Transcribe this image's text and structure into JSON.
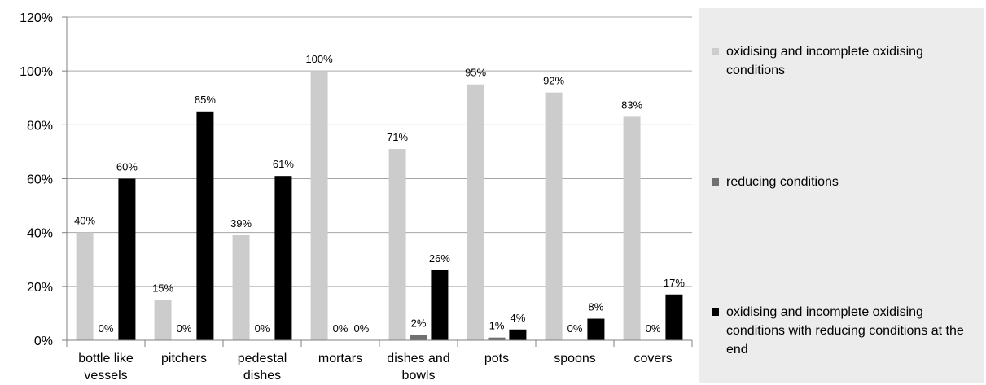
{
  "chart_data": {
    "type": "bar",
    "categories": [
      [
        "bottle like",
        "vessels"
      ],
      [
        "pitchers"
      ],
      [
        "pedestal",
        "dishes"
      ],
      [
        "mortars"
      ],
      [
        "dishes and",
        "bowls"
      ],
      [
        "pots"
      ],
      [
        "spoons"
      ],
      [
        "covers"
      ]
    ],
    "series": [
      {
        "name": "oxidising and incomplete oxidising conditions",
        "color": "#cccccc",
        "values": [
          40,
          15,
          39,
          100,
          71,
          95,
          92,
          83
        ]
      },
      {
        "name": "reducing conditions",
        "color": "#707070",
        "values": [
          0,
          0,
          0,
          0,
          2,
          1,
          0,
          0
        ]
      },
      {
        "name": "oxidising and incomplete oxidising conditions with reducing conditions at the end",
        "color": "#000000",
        "values": [
          60,
          85,
          61,
          0,
          26,
          4,
          8,
          17
        ]
      }
    ],
    "data_labels": [
      [
        "40%",
        "0%",
        "60%"
      ],
      [
        "15%",
        "0%",
        "85%"
      ],
      [
        "39%",
        "0%",
        "61%"
      ],
      [
        "100%",
        "0%",
        "0%"
      ],
      [
        "71%",
        "2%",
        "26%"
      ],
      [
        "95%",
        "1%",
        "4%"
      ],
      [
        "92%",
        "0%",
        "8%"
      ],
      [
        "83%",
        "0%",
        "17%"
      ]
    ],
    "yticks": [
      "0%",
      "20%",
      "40%",
      "60%",
      "80%",
      "100%",
      "120%"
    ],
    "ylim": [
      0,
      120
    ],
    "grid": true,
    "legend_position": "right"
  }
}
